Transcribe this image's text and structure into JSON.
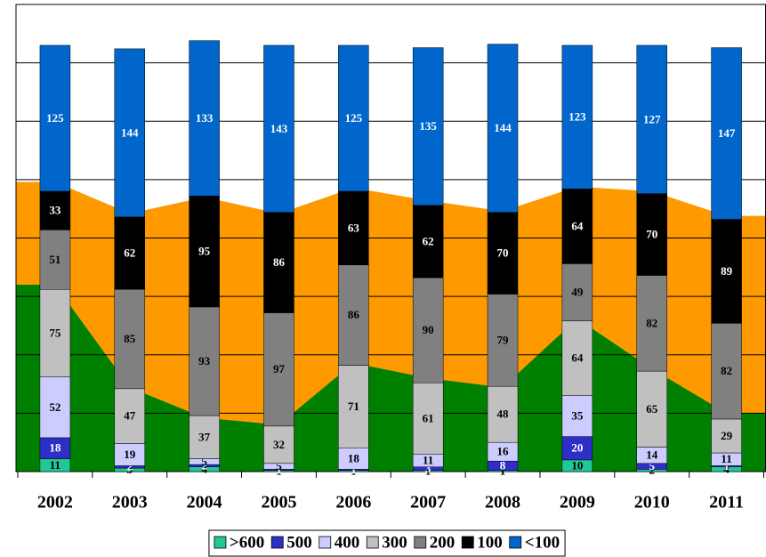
{
  "chart_data": {
    "type": "stacked-bar",
    "categories": [
      "2002",
      "2003",
      "2004",
      "2005",
      "2006",
      "2007",
      "2008",
      "2009",
      "2010",
      "2011"
    ],
    "ylim": [
      0,
      400
    ],
    "yticks": [
      0,
      50,
      100,
      150,
      200,
      250,
      300,
      350,
      400
    ],
    "grid": true,
    "area_series": [
      {
        "color": "#ff9900",
        "values": [
          248,
          221,
          235,
          221,
          243,
          232,
          223,
          244,
          240,
          219
        ]
      },
      {
        "color": "#008000",
        "values": [
          160,
          72,
          46,
          40,
          93,
          80,
          72,
          131,
          88,
          50
        ]
      }
    ],
    "series": [
      {
        "name": ">600",
        "color": "#1fc896",
        "values": [
          11,
          3,
          4,
          1,
          1,
          1,
          1,
          10,
          2,
          4
        ]
      },
      {
        "name": "500",
        "color": "#2e2ec8",
        "values": [
          18,
          2,
          2,
          1,
          1,
          3,
          8,
          20,
          5,
          1
        ]
      },
      {
        "name": "400",
        "color": "#ccccff",
        "values": [
          52,
          19,
          5,
          5,
          18,
          11,
          16,
          35,
          14,
          11
        ]
      },
      {
        "name": "300",
        "color": "#c0c0c0",
        "values": [
          75,
          47,
          37,
          32,
          71,
          61,
          48,
          64,
          65,
          29
        ]
      },
      {
        "name": "200",
        "color": "#808080",
        "values": [
          51,
          85,
          93,
          97,
          86,
          90,
          79,
          49,
          82,
          82
        ]
      },
      {
        "name": "100",
        "color": "#000000",
        "values": [
          33,
          62,
          95,
          86,
          63,
          62,
          70,
          64,
          70,
          89
        ]
      },
      {
        "name": "<100",
        "color": "#0066cc",
        "values": [
          125,
          144,
          133,
          143,
          125,
          135,
          144,
          123,
          127,
          147
        ]
      }
    ]
  }
}
